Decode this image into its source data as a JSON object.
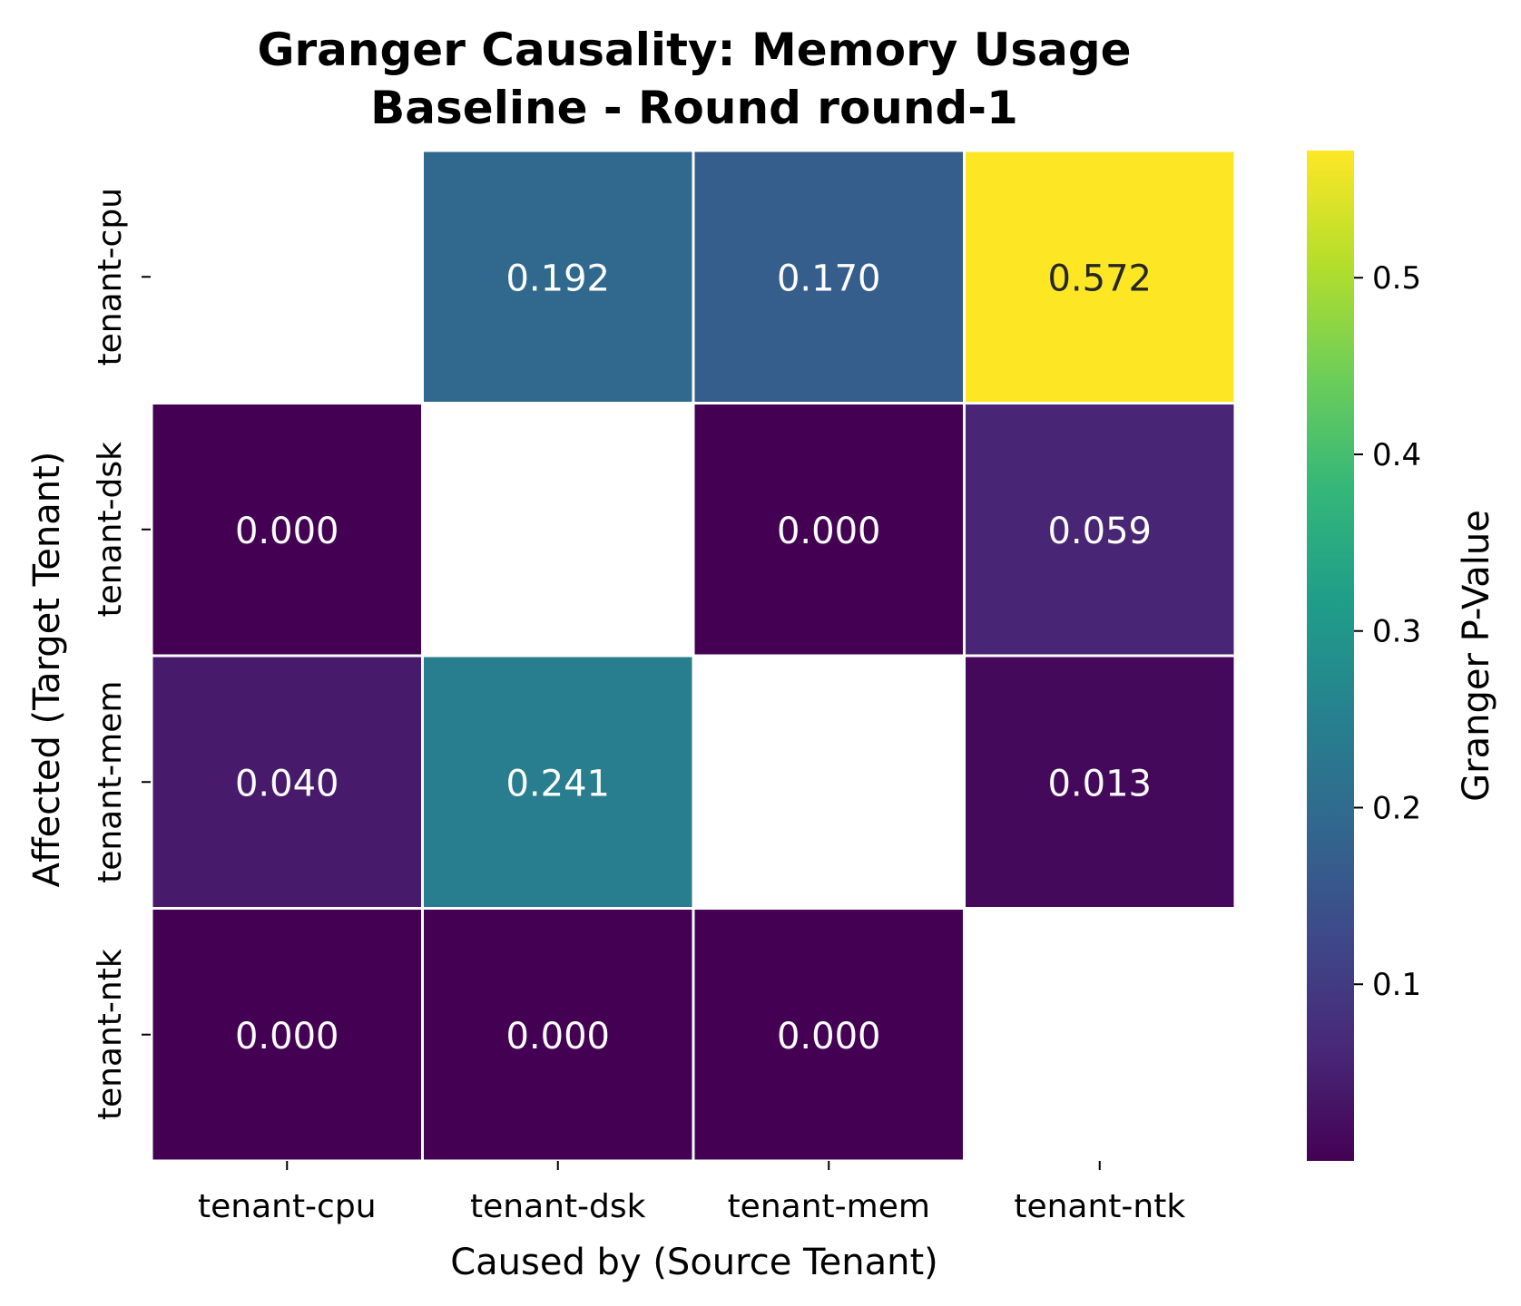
{
  "chart_data": {
    "type": "heatmap",
    "title": "Granger Causality: Memory Usage",
    "subtitle": "Baseline - Round round-1",
    "xlabel": "Caused by (Source Tenant)",
    "ylabel": "Affected (Target Tenant)",
    "x_categories": [
      "tenant-cpu",
      "tenant-dsk",
      "tenant-mem",
      "tenant-ntk"
    ],
    "y_categories": [
      "tenant-cpu",
      "tenant-dsk",
      "tenant-mem",
      "tenant-ntk"
    ],
    "values": [
      [
        null,
        0.192,
        0.17,
        0.572
      ],
      [
        0.0,
        null,
        0.0,
        0.059
      ],
      [
        0.04,
        0.241,
        null,
        0.013
      ],
      [
        0.0,
        0.0,
        0.0,
        null
      ]
    ],
    "cell_labels": [
      [
        "",
        "0.192",
        "0.170",
        "0.572"
      ],
      [
        "0.000",
        "",
        "0.000",
        "0.059"
      ],
      [
        "0.040",
        "0.241",
        "",
        "0.013"
      ],
      [
        "0.000",
        "0.000",
        "0.000",
        ""
      ]
    ],
    "colorbar": {
      "label": "Granger P-Value",
      "colormap": "viridis",
      "range": [
        0.0,
        0.572
      ],
      "ticks": [
        0.1,
        0.2,
        0.3,
        0.4,
        0.5
      ],
      "tick_labels": [
        "0.1",
        "0.2",
        "0.3",
        "0.4",
        "0.5"
      ]
    }
  }
}
